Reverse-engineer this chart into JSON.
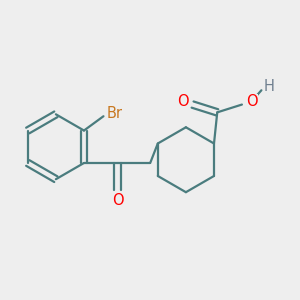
{
  "bg_color": "#eeeeee",
  "bond_color": "#4a7c7e",
  "bond_width": 1.6,
  "atom_colors": {
    "O": "#ff0000",
    "Br": "#c87820",
    "H": "#708090",
    "C": "#4a7c7e"
  },
  "font_size_atom": 10.5,
  "font_size_br": 10.5,
  "font_size_h": 10.5
}
